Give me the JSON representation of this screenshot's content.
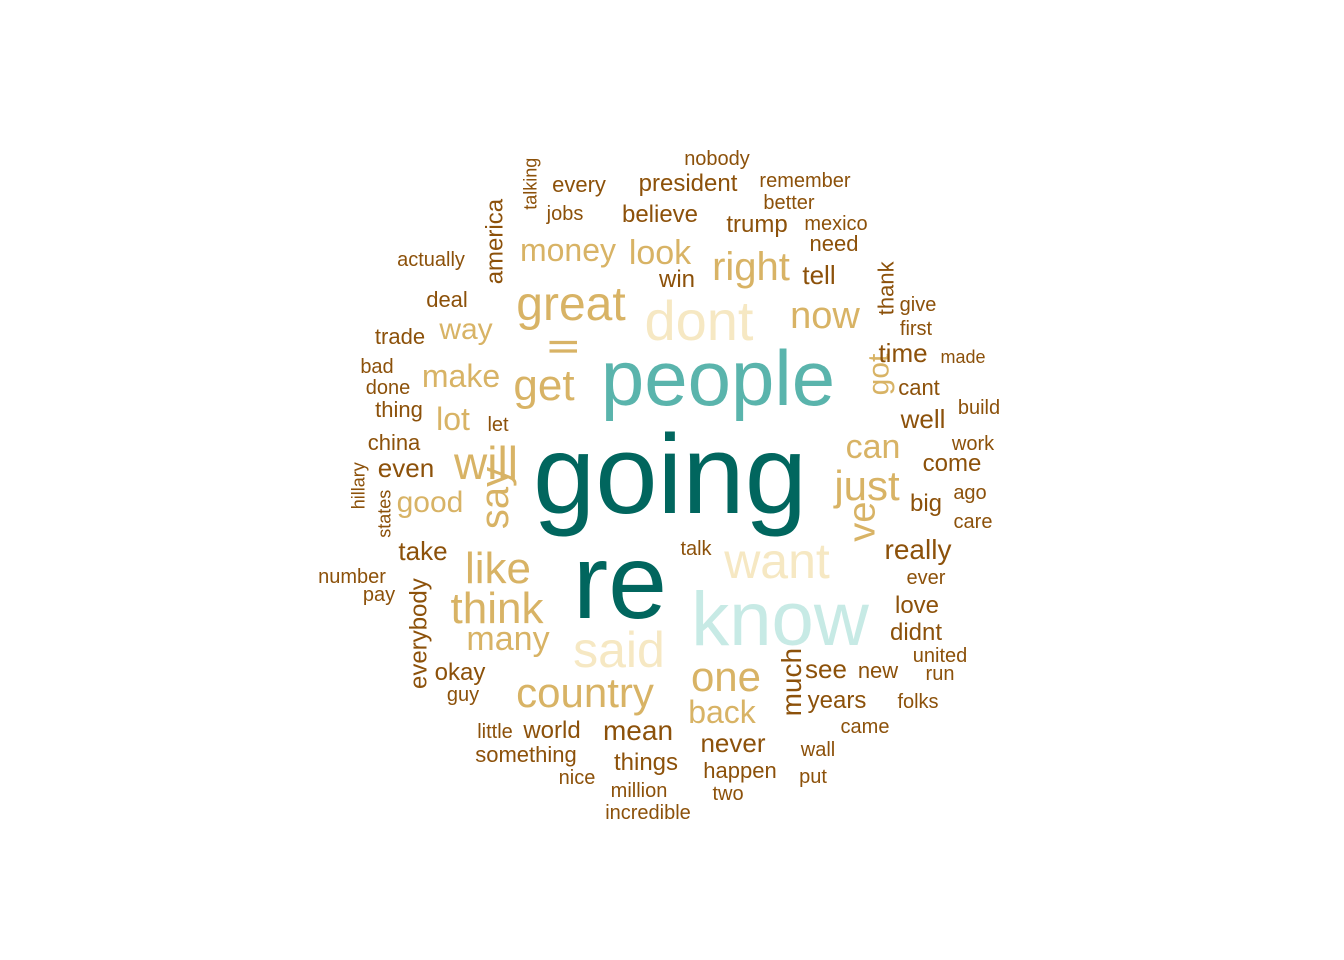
{
  "word_cloud": {
    "palette": {
      "level1": "#8C510A",
      "level2": "#D8B365",
      "level3": "#F6E8C3",
      "level4": "#C7EAE5",
      "level5": "#5AB4AC",
      "level6": "#01665E"
    },
    "words": [
      {
        "text": "going",
        "level": 6
      },
      {
        "text": "re",
        "level": 6
      },
      {
        "text": "people",
        "level": 5
      },
      {
        "text": "know",
        "level": 4
      },
      {
        "text": "dont",
        "level": 3
      },
      {
        "text": "want",
        "level": 3
      },
      {
        "text": "said",
        "level": 3
      },
      {
        "text": "great",
        "level": 2
      },
      {
        "text": "get",
        "level": 2
      },
      {
        "text": "ll",
        "level": 2
      },
      {
        "text": "will",
        "level": 2
      },
      {
        "text": "say",
        "level": 2
      },
      {
        "text": "like",
        "level": 2
      },
      {
        "text": "think",
        "level": 2
      },
      {
        "text": "many",
        "level": 2
      },
      {
        "text": "country",
        "level": 2
      },
      {
        "text": "one",
        "level": 2
      },
      {
        "text": "back",
        "level": 2
      },
      {
        "text": "just",
        "level": 2
      },
      {
        "text": "ve",
        "level": 2
      },
      {
        "text": "can",
        "level": 2
      },
      {
        "text": "got",
        "level": 2
      },
      {
        "text": "now",
        "level": 2
      },
      {
        "text": "right",
        "level": 2
      },
      {
        "text": "money",
        "level": 2
      },
      {
        "text": "look",
        "level": 2
      },
      {
        "text": "make",
        "level": 2
      },
      {
        "text": "way",
        "level": 2
      },
      {
        "text": "lot",
        "level": 2
      },
      {
        "text": "good",
        "level": 2
      },
      {
        "text": "much",
        "level": 1
      },
      {
        "text": "see",
        "level": 1
      },
      {
        "text": "years",
        "level": 1
      },
      {
        "text": "never",
        "level": 1
      },
      {
        "text": "mean",
        "level": 1
      },
      {
        "text": "things",
        "level": 1
      },
      {
        "text": "world",
        "level": 1
      },
      {
        "text": "something",
        "level": 1
      },
      {
        "text": "really",
        "level": 1
      },
      {
        "text": "take",
        "level": 1
      },
      {
        "text": "even",
        "level": 1
      },
      {
        "text": "time",
        "level": 1
      },
      {
        "text": "well",
        "level": 1
      },
      {
        "text": "come",
        "level": 1
      },
      {
        "text": "big",
        "level": 1
      },
      {
        "text": "love",
        "level": 1
      },
      {
        "text": "didnt",
        "level": 1
      },
      {
        "text": "new",
        "level": 1
      },
      {
        "text": "okay",
        "level": 1
      },
      {
        "text": "everybody",
        "level": 1
      },
      {
        "text": "president",
        "level": 1
      },
      {
        "text": "believe",
        "level": 1
      },
      {
        "text": "trump",
        "level": 1
      },
      {
        "text": "win",
        "level": 1
      },
      {
        "text": "tell",
        "level": 1
      },
      {
        "text": "america",
        "level": 1
      },
      {
        "text": "need",
        "level": 1
      },
      {
        "text": "thank",
        "level": 1
      },
      {
        "text": "cant",
        "level": 1
      },
      {
        "text": "deal",
        "level": 1
      },
      {
        "text": "trade",
        "level": 1
      },
      {
        "text": "thing",
        "level": 1
      },
      {
        "text": "china",
        "level": 1
      },
      {
        "text": "happen",
        "level": 1
      },
      {
        "text": "every",
        "level": 1
      },
      {
        "text": "jobs",
        "level": 1
      },
      {
        "text": "better",
        "level": 1
      },
      {
        "text": "remember",
        "level": 1
      },
      {
        "text": "nobody",
        "level": 1
      },
      {
        "text": "mexico",
        "level": 1
      },
      {
        "text": "actually",
        "level": 1
      },
      {
        "text": "talking",
        "level": 1
      },
      {
        "text": "give",
        "level": 1
      },
      {
        "text": "first",
        "level": 1
      },
      {
        "text": "made",
        "level": 1
      },
      {
        "text": "build",
        "level": 1
      },
      {
        "text": "work",
        "level": 1
      },
      {
        "text": "ago",
        "level": 1
      },
      {
        "text": "care",
        "level": 1
      },
      {
        "text": "ever",
        "level": 1
      },
      {
        "text": "united",
        "level": 1
      },
      {
        "text": "run",
        "level": 1
      },
      {
        "text": "folks",
        "level": 1
      },
      {
        "text": "came",
        "level": 1
      },
      {
        "text": "wall",
        "level": 1
      },
      {
        "text": "put",
        "level": 1
      },
      {
        "text": "two",
        "level": 1
      },
      {
        "text": "incredible",
        "level": 1
      },
      {
        "text": "million",
        "level": 1
      },
      {
        "text": "nice",
        "level": 1
      },
      {
        "text": "little",
        "level": 1
      },
      {
        "text": "guy",
        "level": 1
      },
      {
        "text": "let",
        "level": 1
      },
      {
        "text": "bad",
        "level": 1
      },
      {
        "text": "done",
        "level": 1
      },
      {
        "text": "hillary",
        "level": 1
      },
      {
        "text": "states",
        "level": 1
      },
      {
        "text": "number",
        "level": 1
      },
      {
        "text": "pay",
        "level": 1
      },
      {
        "text": "talk",
        "level": 1
      }
    ]
  }
}
